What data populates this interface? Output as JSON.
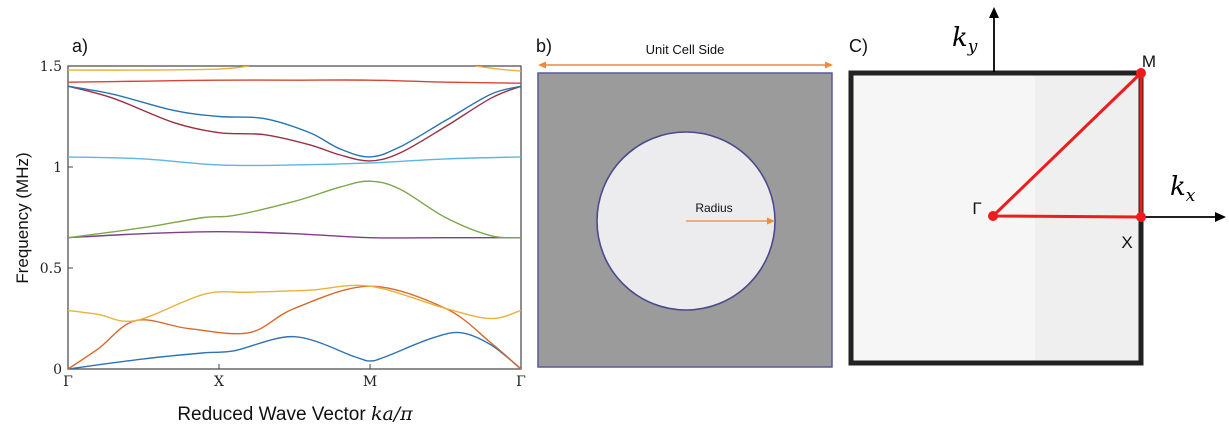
{
  "panel_a": {
    "label": "a)",
    "xlabel_text": "Reduced Wave Vector ",
    "xlabel_math": "ka/π",
    "ylabel": "Frequency (MHz)"
  },
  "panel_b": {
    "label": "b)",
    "side_label": "Unit Cell Side",
    "radius_label": "Radius",
    "colors": {
      "matrix": "#9b9b9b",
      "inclusion": "#ececef",
      "outline": "#5a5a9a",
      "arrow": "#f08a3c"
    }
  },
  "panel_c": {
    "label": "C)",
    "ky": "k",
    "ky_sub": "y",
    "kx": "k",
    "kx_sub": "x",
    "point_gamma": "Γ",
    "point_x": "X",
    "point_m": "M",
    "colors": {
      "path": "#ee1c1c",
      "frame": "#222222"
    }
  },
  "chart_data": {
    "type": "line",
    "title": "",
    "xlabel": "Reduced Wave Vector ka/π",
    "ylabel": "Frequency (MHz)",
    "x_tick_labels": [
      "Γ",
      "X",
      "M",
      "Γ"
    ],
    "x_tick_positions": [
      0,
      1,
      2,
      3
    ],
    "y_tick_labels": [
      "0",
      "0.5",
      "1",
      "1.5"
    ],
    "y_ticks": [
      0,
      0.5,
      1,
      1.5
    ],
    "xlim": [
      0,
      3
    ],
    "ylim": [
      0,
      1.5
    ],
    "grid": false,
    "series": [
      {
        "color": "#2f72b5",
        "x": [
          0,
          0.5,
          0.9,
          1.1,
          1.5,
          1.9,
          2.0,
          2.1,
          2.4,
          2.6,
          2.8,
          3.0
        ],
        "y": [
          0,
          0.05,
          0.08,
          0.09,
          0.16,
          0.06,
          0.04,
          0.06,
          0.15,
          0.18,
          0.12,
          0
        ]
      },
      {
        "color": "#d8692a",
        "x": [
          0,
          0.2,
          0.45,
          0.8,
          1.2,
          1.5,
          2.0,
          2.5,
          2.8,
          3.0
        ],
        "y": [
          0,
          0.1,
          0.24,
          0.2,
          0.18,
          0.3,
          0.41,
          0.3,
          0.13,
          0
        ]
      },
      {
        "color": "#eab13c",
        "x": [
          0,
          0.2,
          0.45,
          0.9,
          1.2,
          1.6,
          2.0,
          2.5,
          2.8,
          3.0
        ],
        "y": [
          0.29,
          0.27,
          0.24,
          0.37,
          0.38,
          0.39,
          0.41,
          0.3,
          0.25,
          0.29
        ]
      },
      {
        "color": "#7d3f8a",
        "x": [
          0,
          0.5,
          1.0,
          1.5,
          2.0,
          2.5,
          3.0
        ],
        "y": [
          0.65,
          0.67,
          0.68,
          0.67,
          0.65,
          0.65,
          0.65
        ]
      },
      {
        "color": "#7ea64a",
        "x": [
          0,
          0.5,
          0.9,
          1.1,
          1.5,
          1.8,
          2.0,
          2.2,
          2.5,
          2.8,
          3.0
        ],
        "y": [
          0.65,
          0.7,
          0.75,
          0.76,
          0.83,
          0.9,
          0.93,
          0.89,
          0.75,
          0.66,
          0.65
        ]
      },
      {
        "color": "#5bb6e3",
        "x": [
          0,
          0.5,
          1.0,
          1.5,
          2.0,
          2.5,
          3.0
        ],
        "y": [
          1.05,
          1.04,
          1.01,
          1.01,
          1.02,
          1.04,
          1.05
        ]
      },
      {
        "color": "#9b2f3f",
        "x": [
          0,
          0.3,
          0.7,
          1.0,
          1.3,
          1.6,
          1.8,
          2.0,
          2.2,
          2.5,
          2.8,
          3.0
        ],
        "y": [
          1.4,
          1.34,
          1.22,
          1.17,
          1.16,
          1.11,
          1.06,
          1.03,
          1.07,
          1.2,
          1.34,
          1.4
        ]
      },
      {
        "color": "#2874b0",
        "x": [
          0,
          0.3,
          0.7,
          1.0,
          1.3,
          1.6,
          1.8,
          2.0,
          2.2,
          2.5,
          2.8,
          3.0
        ],
        "y": [
          1.4,
          1.36,
          1.28,
          1.25,
          1.24,
          1.17,
          1.09,
          1.05,
          1.1,
          1.23,
          1.36,
          1.4
        ]
      },
      {
        "color": "#d7453a",
        "x": [
          0,
          0.5,
          1.0,
          1.5,
          2.0,
          2.5,
          3.0
        ],
        "y": [
          1.42,
          1.425,
          1.43,
          1.43,
          1.43,
          1.42,
          1.415
        ]
      },
      {
        "color": "#eab13c",
        "x": [
          0,
          0.5,
          1.0,
          1.2
        ],
        "y": [
          1.48,
          1.48,
          1.485,
          1.5
        ]
      },
      {
        "color": "#eab13c",
        "x": [
          2.7,
          2.85,
          3.0
        ],
        "y": [
          1.5,
          1.485,
          1.475
        ]
      }
    ]
  }
}
